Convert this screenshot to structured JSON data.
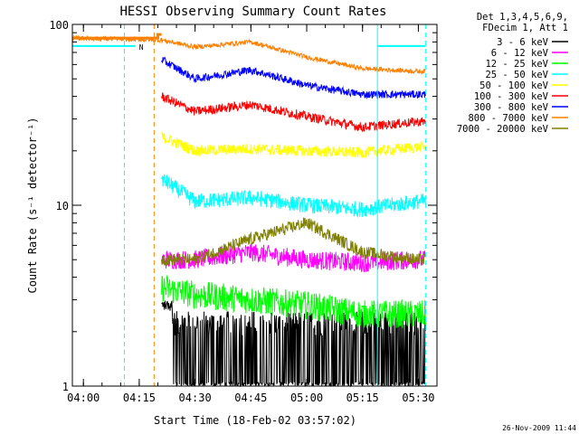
{
  "chart_data": {
    "type": "line",
    "title": "HESSI Observing Summary Count Rates",
    "xlabel": "Start Time (18-Feb-02 03:57:02)",
    "ylabel": "Count Rate (s⁻¹ detector⁻¹)",
    "y_scale": "log",
    "ylim": [
      1,
      100
    ],
    "xlim": [
      "03:57:02",
      "05:35"
    ],
    "x_ticks": [
      "04:00",
      "04:15",
      "04:30",
      "04:45",
      "05:00",
      "05:15",
      "05:30"
    ],
    "y_ticks": [
      "1",
      "10",
      "100"
    ],
    "legend_header": [
      "Det 1,3,4,5,6,9,",
      "FDecim 1, Att 1"
    ],
    "legend_position": "outside-right-top",
    "series": [
      {
        "name": "3 - 6 keV",
        "color": "#000000",
        "x": [
          "04:21",
          "04:30",
          "04:45",
          "05:00",
          "05:15",
          "05:30"
        ],
        "y": [
          2.5,
          1.5,
          1.5,
          1.5,
          1.5,
          1.5
        ]
      },
      {
        "name": "6 - 12 keV",
        "color": "#ff00ff",
        "x": [
          "04:21",
          "04:30",
          "04:45",
          "05:00",
          "05:15",
          "05:30"
        ],
        "y": [
          5.0,
          5.0,
          5.5,
          5.0,
          4.8,
          5.0
        ]
      },
      {
        "name": "12 - 25 keV",
        "color": "#00ff00",
        "x": [
          "04:21",
          "04:30",
          "04:45",
          "05:00",
          "05:15",
          "05:30"
        ],
        "y": [
          3.5,
          3.2,
          3.0,
          2.8,
          2.5,
          2.5
        ]
      },
      {
        "name": "25 - 50 keV",
        "color": "#00ffff",
        "x": [
          "04:21",
          "04:30",
          "04:45",
          "05:00",
          "05:15",
          "05:30"
        ],
        "y": [
          14,
          10.5,
          11,
          10,
          9.5,
          10.5
        ]
      },
      {
        "name": "50 - 100 keV",
        "color": "#ffff00",
        "x": [
          "04:21",
          "04:30",
          "04:45",
          "05:00",
          "05:15",
          "05:30"
        ],
        "y": [
          24,
          20,
          20.5,
          20,
          19.5,
          21
        ]
      },
      {
        "name": "100 - 300 keV",
        "color": "#ff0000",
        "x": [
          "04:21",
          "04:30",
          "04:45",
          "05:00",
          "05:15",
          "05:30"
        ],
        "y": [
          40,
          33,
          36,
          31,
          27,
          29
        ]
      },
      {
        "name": "300 - 800 keV",
        "color": "#0000ff",
        "x": [
          "04:21",
          "04:30",
          "04:45",
          "05:00",
          "05:15",
          "05:30"
        ],
        "y": [
          64,
          50,
          56,
          46,
          41,
          41
        ]
      },
      {
        "name": "800 - 7000 keV",
        "color": "#ff8000",
        "x": [
          "03:57",
          "04:21",
          "04:30",
          "04:45",
          "05:00",
          "05:15",
          "05:30"
        ],
        "y": [
          84,
          82,
          75,
          80,
          66,
          57,
          55
        ]
      },
      {
        "name": "7000 - 20000 keV",
        "color": "#808000",
        "x": [
          "04:21",
          "04:30",
          "04:45",
          "05:00",
          "05:15",
          "05:30"
        ],
        "y": [
          5.0,
          5.0,
          6.5,
          8.0,
          5.5,
          5.0
        ]
      }
    ],
    "annotations": [
      {
        "text": "N",
        "color": "#00ffff",
        "note": "night interval marker"
      }
    ],
    "vertical_lines": [
      {
        "x": "04:11",
        "color": "#00ffff",
        "style": "dashed"
      },
      {
        "x": "04:19",
        "color": "#ff8000",
        "style": "dashed"
      },
      {
        "x": "05:19",
        "color": "#00ffff",
        "style": "solid"
      },
      {
        "x": "05:32",
        "color": "#00ffff",
        "style": "dashed"
      }
    ],
    "footer": "26-Nov-2009 11:44"
  }
}
